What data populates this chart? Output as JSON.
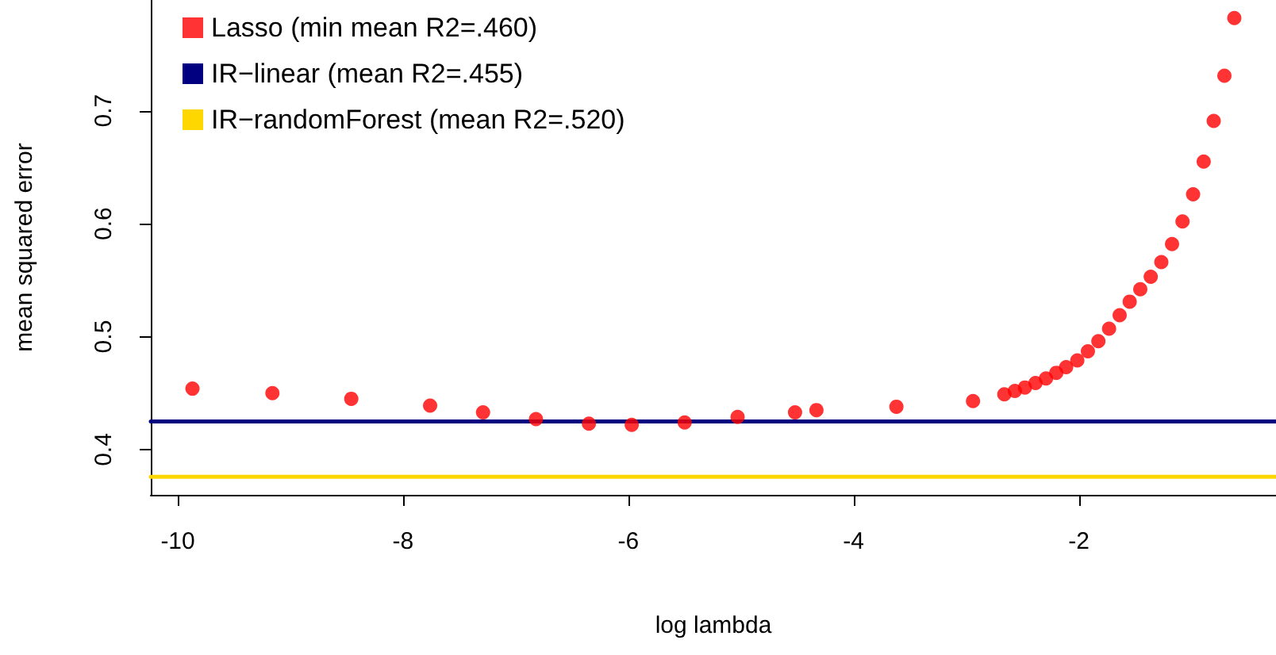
{
  "chart_data": {
    "type": "scatter",
    "xlabel": "log lambda",
    "ylabel": "mean squared error",
    "xlim": [
      -10.24,
      -0.25
    ],
    "ylim": [
      0.36,
      0.798
    ],
    "xticks": [
      -10,
      -8,
      -6,
      -4,
      -2
    ],
    "yticks": [
      0.4,
      0.5,
      0.6,
      0.7
    ],
    "legend": "top left",
    "grid": false,
    "marker": "circle",
    "series": [
      {
        "name": "Lasso (min mean R2=.460)",
        "color": "#ff0000",
        "x": [
          -9.87,
          -9.16,
          -8.46,
          -7.76,
          -7.29,
          -6.82,
          -6.35,
          -5.97,
          -5.5,
          -5.03,
          -4.52,
          -4.33,
          -3.62,
          -2.94,
          -2.662,
          -2.568,
          -2.479,
          -2.385,
          -2.292,
          -2.201,
          -2.113,
          -2.014,
          -1.92,
          -1.827,
          -1.732,
          -1.638,
          -1.549,
          -1.455,
          -1.362,
          -1.268,
          -1.173,
          -1.08,
          -0.986,
          -0.892,
          -0.803,
          -0.708,
          -0.62
        ],
        "values": [
          0.454,
          0.45,
          0.445,
          0.439,
          0.433,
          0.427,
          0.423,
          0.422,
          0.424,
          0.429,
          0.433,
          0.435,
          0.438,
          0.443,
          0.449,
          0.452,
          0.455,
          0.459,
          0.463,
          0.468,
          0.473,
          0.479,
          0.487,
          0.496,
          0.507,
          0.519,
          0.531,
          0.542,
          0.553,
          0.566,
          0.582,
          0.602,
          0.626,
          0.655,
          0.691,
          0.731,
          0.782
        ]
      },
      {
        "name": "IR−linear (mean R2=.455)",
        "type": "line",
        "color": "#000080",
        "marker": "none",
        "x": [
          -10.24,
          -0.25
        ],
        "values": [
          0.425,
          0.425
        ]
      },
      {
        "name": "IR−randomForest (mean R2=.520)",
        "type": "line",
        "color": "#ffd700",
        "marker": "none",
        "x": [
          -10.24,
          -0.25
        ],
        "values": [
          0.376,
          0.376
        ]
      }
    ]
  }
}
